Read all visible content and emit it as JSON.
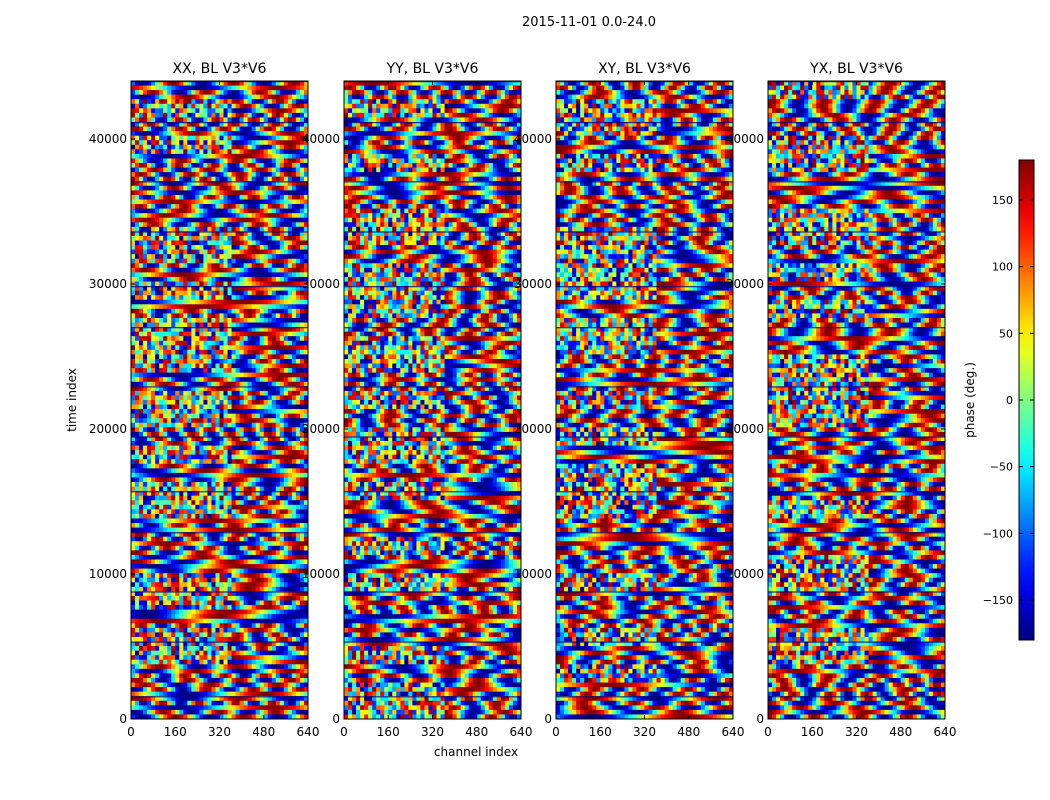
{
  "figure": {
    "suptitle": "2015-11-01 0.0-24.0"
  },
  "chart_data": {
    "type": "heatmap",
    "xlabel": "channel index",
    "ylabel": "time index",
    "xlim": [
      0,
      640
    ],
    "ylim": [
      0,
      44000
    ],
    "x_ticks": [
      0,
      160,
      320,
      480,
      640
    ],
    "y_ticks": [
      0,
      10000,
      20000,
      30000,
      40000
    ],
    "colormap": "jet",
    "colorbar": {
      "label": "phase (deg.)",
      "range": [
        -180,
        180
      ],
      "ticks": [
        -150,
        -100,
        -50,
        0,
        50,
        100,
        150
      ],
      "tick_labels": [
        "−150",
        "−100",
        "−50",
        "0",
        "50",
        "100",
        "150"
      ]
    },
    "panels": [
      {
        "title": "XX, BL V3*V6"
      },
      {
        "title": "YY, BL V3*V6"
      },
      {
        "title": "XY, BL V3*V6"
      },
      {
        "title": "YX, BL V3*V6"
      }
    ]
  }
}
